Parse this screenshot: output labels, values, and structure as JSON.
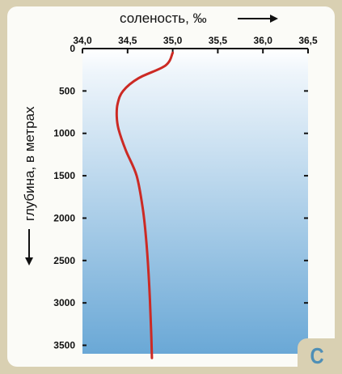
{
  "chart_data": {
    "type": "line",
    "xlabel": "соленость, ‰",
    "ylabel": "глубина, в метрах",
    "x_ticks": [
      "34,0",
      "34,5",
      "35,0",
      "35,5",
      "36,0",
      "36,5"
    ],
    "y_ticks": [
      "0",
      "500",
      "1000",
      "1500",
      "2000",
      "2500",
      "3000",
      "3500"
    ],
    "xlim": [
      34.0,
      36.5
    ],
    "ylim": [
      0,
      3600
    ],
    "y_inverted": true,
    "x_axis_position": "top",
    "grid": false,
    "series": [
      {
        "color": "#cc2a24",
        "points": [
          {
            "x": 35.0,
            "y": 50
          },
          {
            "x": 34.92,
            "y": 200
          },
          {
            "x": 34.62,
            "y": 350
          },
          {
            "x": 34.45,
            "y": 500
          },
          {
            "x": 34.39,
            "y": 650
          },
          {
            "x": 34.38,
            "y": 800
          },
          {
            "x": 34.4,
            "y": 950
          },
          {
            "x": 34.48,
            "y": 1200
          },
          {
            "x": 34.6,
            "y": 1500
          },
          {
            "x": 34.67,
            "y": 1900
          },
          {
            "x": 34.71,
            "y": 2300
          },
          {
            "x": 34.74,
            "y": 2800
          },
          {
            "x": 34.76,
            "y": 3300
          },
          {
            "x": 34.77,
            "y": 3650
          }
        ]
      }
    ]
  },
  "badge": {
    "letter": "C"
  },
  "colors": {
    "frame_bg": "#d9d0b2",
    "panel_bg": "#fbfbf7",
    "water_top": "#ffffff",
    "water_bottom": "#6aa8d6",
    "curve": "#cc2a24",
    "badge_text": "#4f8fb6"
  },
  "icons": [
    "arrow-right-icon",
    "arrow-down-icon"
  ]
}
